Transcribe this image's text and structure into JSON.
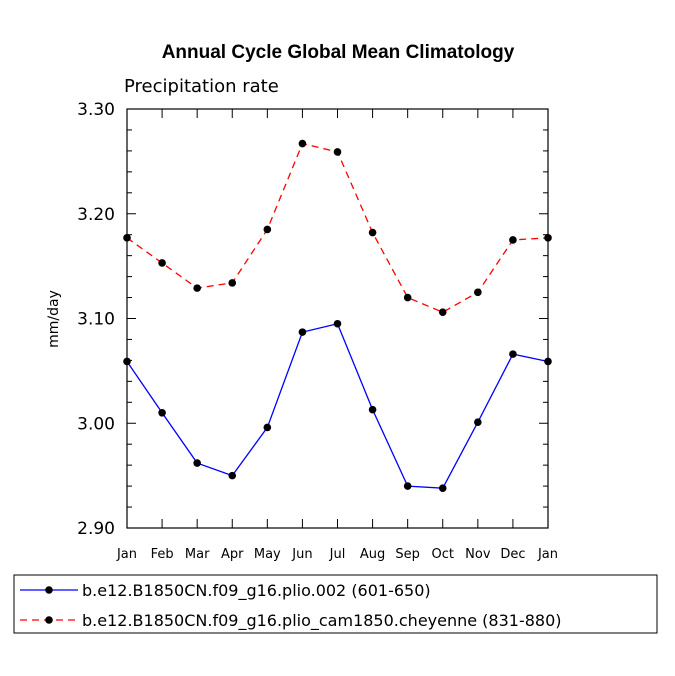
{
  "chart_data": {
    "type": "line",
    "title": "Annual Cycle Global Mean Climatology",
    "subtitle": "Precipitation rate",
    "xlabel": "",
    "ylabel": "mm/day",
    "ylim": [
      2.9,
      3.3
    ],
    "yticks": [
      "3.30",
      "3.20",
      "3.10",
      "3.00",
      "2.90"
    ],
    "ytick_values": [
      3.3,
      3.2,
      3.1,
      3.0,
      2.9
    ],
    "categories": [
      "Jan",
      "Feb",
      "Mar",
      "Apr",
      "May",
      "Jun",
      "Jul",
      "Aug",
      "Sep",
      "Oct",
      "Nov",
      "Dec",
      "Jan"
    ],
    "grid": false,
    "legend_position": "bottom",
    "series": [
      {
        "name": "b.e12.B1850CN.f09_g16.plio.002 (601-650)",
        "color": "#0000ff",
        "dash": "solid",
        "values": [
          3.059,
          3.01,
          2.962,
          2.95,
          2.996,
          3.087,
          3.095,
          3.013,
          2.94,
          2.938,
          3.001,
          3.066,
          3.059
        ]
      },
      {
        "name": "b.e12.B1850CN.f09_g16.plio_cam1850.cheyenne (831-880)",
        "color": "#ff0000",
        "dash": "dashed",
        "values": [
          3.177,
          3.153,
          3.129,
          3.134,
          3.185,
          3.267,
          3.259,
          3.182,
          3.12,
          3.106,
          3.125,
          3.175,
          3.177
        ]
      }
    ]
  }
}
